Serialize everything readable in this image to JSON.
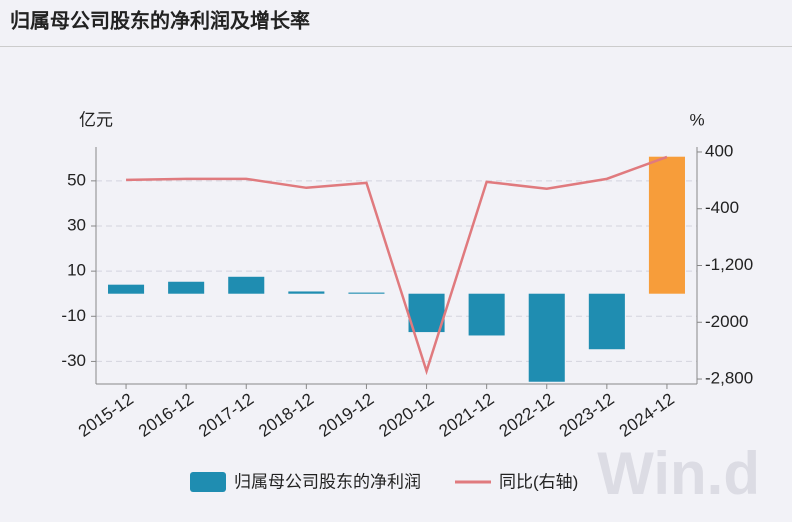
{
  "chart_data": {
    "type": "bar-line",
    "title": "归属母公司股东的净利润及增长率",
    "y_label": "亿元",
    "y2_label": "%",
    "categories": [
      "2015-12",
      "2016-12",
      "2017-12",
      "2018-12",
      "2019-12",
      "2020-12",
      "2021-12",
      "2022-12",
      "2023-12",
      "2024-12"
    ],
    "series": [
      {
        "name": "归属母公司股东的净利润",
        "type": "bar",
        "color": "#1f8db1",
        "colors": [
          "#1f8db1",
          "#1f8db1",
          "#1f8db1",
          "#1f8db1",
          "#1f8db1",
          "#1f8db1",
          "#1f8db1",
          "#1f8db1",
          "#1f8db1",
          "#f79d3a"
        ],
        "values": [
          4,
          5.3,
          7.5,
          1,
          0.5,
          -17,
          -18.5,
          -39,
          -24.6,
          60.7
        ]
      },
      {
        "name": "同比(右轴)",
        "type": "line",
        "axis": "y2",
        "color": "#e07a7e",
        "values": [
          7,
          21,
          21,
          -105,
          -35,
          -2688,
          -21,
          -119,
          21,
          330
        ]
      }
    ],
    "ylim": [
      -40,
      65
    ],
    "yticks": [
      -30,
      -10,
      10,
      30,
      50
    ],
    "y2lim": [
      -2870,
      470
    ],
    "y2ticks": [
      {
        "value": -2800,
        "label": "-2,800"
      },
      -2000,
      {
        "value": -1200,
        "label": "-1,200"
      },
      -400,
      400
    ],
    "grid": true,
    "watermark": "Win.d"
  }
}
